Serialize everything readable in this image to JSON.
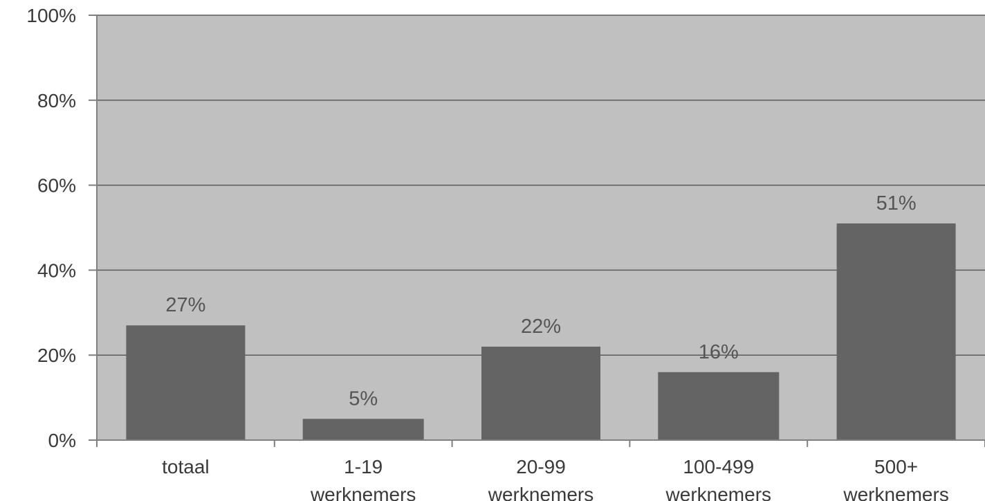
{
  "chart_data": {
    "type": "bar",
    "title": "",
    "xlabel": "",
    "ylabel": "",
    "categories": [
      [
        "totaal"
      ],
      [
        "1-19",
        "werknemers"
      ],
      [
        "20-99",
        "werknemers"
      ],
      [
        "100-499",
        "werknemers"
      ],
      [
        "500+",
        "werknemers"
      ]
    ],
    "values": [
      27,
      5,
      22,
      16,
      51
    ],
    "data_labels": [
      "27%",
      "5%",
      "22%",
      "16%",
      "51%"
    ],
    "ylim": [
      0,
      100
    ],
    "yticks": [
      0,
      20,
      40,
      60,
      80,
      100
    ],
    "ytick_labels": [
      "0%",
      "20%",
      "40%",
      "60%",
      "80%",
      "100%"
    ],
    "grid": true,
    "legend": false,
    "colors": {
      "plot_background": "#c0c0c0",
      "bar": "#646464",
      "gridline": "#5a5a5a",
      "axis": "#808080",
      "text": "#3a3a3a"
    }
  }
}
